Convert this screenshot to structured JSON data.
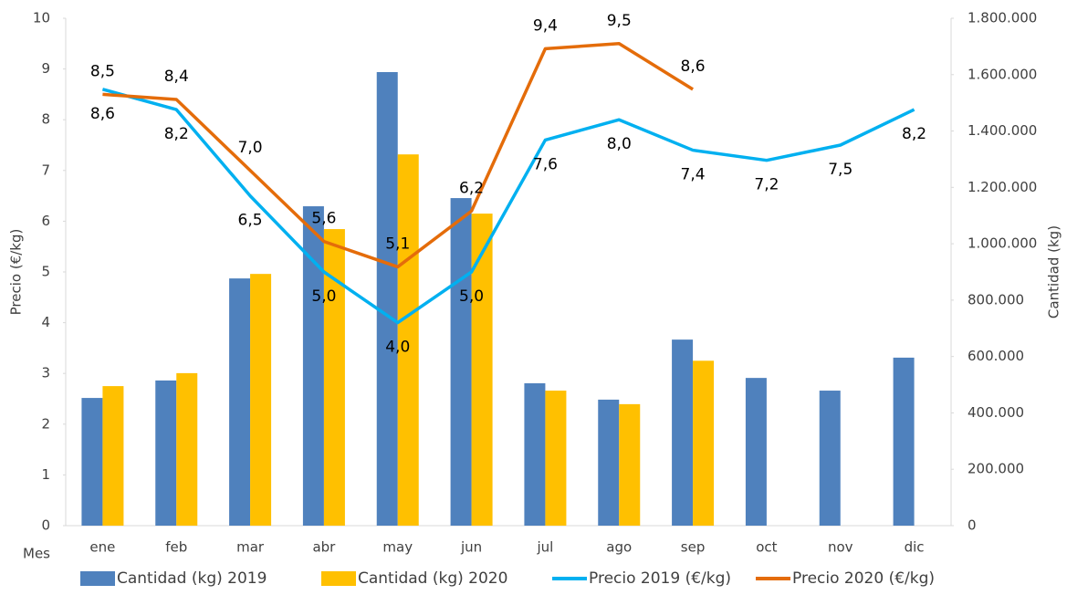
{
  "chart_data": {
    "type": "combo",
    "x_label": "Mes",
    "y_label": "Precio (€/kg)",
    "y2_label": "Cantidad (kg)",
    "categories": [
      "ene",
      "feb",
      "mar",
      "abr",
      "may",
      "jun",
      "jul",
      "ago",
      "sep",
      "oct",
      "nov",
      "dic"
    ],
    "ylim": [
      0,
      10
    ],
    "yticks": [
      0,
      1,
      2,
      3,
      4,
      5,
      6,
      7,
      8,
      9,
      10
    ],
    "y2lim": [
      0,
      1800000
    ],
    "y2ticks": [
      0,
      {
        "value": 200000,
        "label": "200.000"
      },
      {
        "value": 400000,
        "label": "400.000"
      },
      {
        "value": 600000,
        "label": "600.000"
      },
      {
        "value": 800000,
        "label": "800.000"
      },
      {
        "value": 1000000,
        "label": "1.000.000"
      },
      {
        "value": 1200000,
        "label": "1.200.000"
      },
      {
        "value": 1400000,
        "label": "1.400.000"
      },
      {
        "value": 1600000,
        "label": "1.600.000"
      },
      {
        "value": 1800000,
        "label": "1.800.000"
      }
    ],
    "grid": false,
    "legend": "bottom",
    "series": [
      {
        "name": "Cantidad (kg) 2019",
        "type": "bar",
        "axis": "y2",
        "color": "#4f81bd",
        "values": [
          453000,
          515000,
          877000,
          1133000,
          1609000,
          1162000,
          505000,
          447000,
          660000,
          524000,
          479000,
          596000
        ]
      },
      {
        "name": "Cantidad (kg) 2020",
        "type": "bar",
        "axis": "y2",
        "color": "#ffc000",
        "values": [
          495000,
          541000,
          893000,
          1052000,
          1317000,
          1107000,
          479000,
          431000,
          585000,
          null,
          null,
          null
        ]
      },
      {
        "name": "Precio 2019 (€/kg)",
        "type": "line",
        "color": "#00b0f0",
        "values": [
          8.6,
          8.2,
          6.5,
          5.0,
          4.0,
          5.0,
          7.6,
          8.0,
          7.4,
          7.2,
          7.5,
          8.2
        ],
        "value_labels": [
          "8,6",
          "8,2",
          "6,5",
          "5,0",
          "4,0",
          "5,0",
          "7,6",
          "8,0",
          "7,4",
          "7,2",
          "7,5",
          "8,2"
        ]
      },
      {
        "name": "Precio 2020 (€/kg)",
        "type": "line",
        "color": "#e46c0a",
        "values": [
          8.5,
          8.4,
          7.0,
          5.6,
          5.1,
          6.2,
          9.4,
          9.5,
          8.6,
          null,
          null,
          null
        ],
        "value_labels": [
          "8,5",
          "8,4",
          "7,0",
          "5,6",
          "5,1",
          "6,2",
          "9,4",
          "9,5",
          "8,6",
          null,
          null,
          null
        ]
      }
    ]
  }
}
